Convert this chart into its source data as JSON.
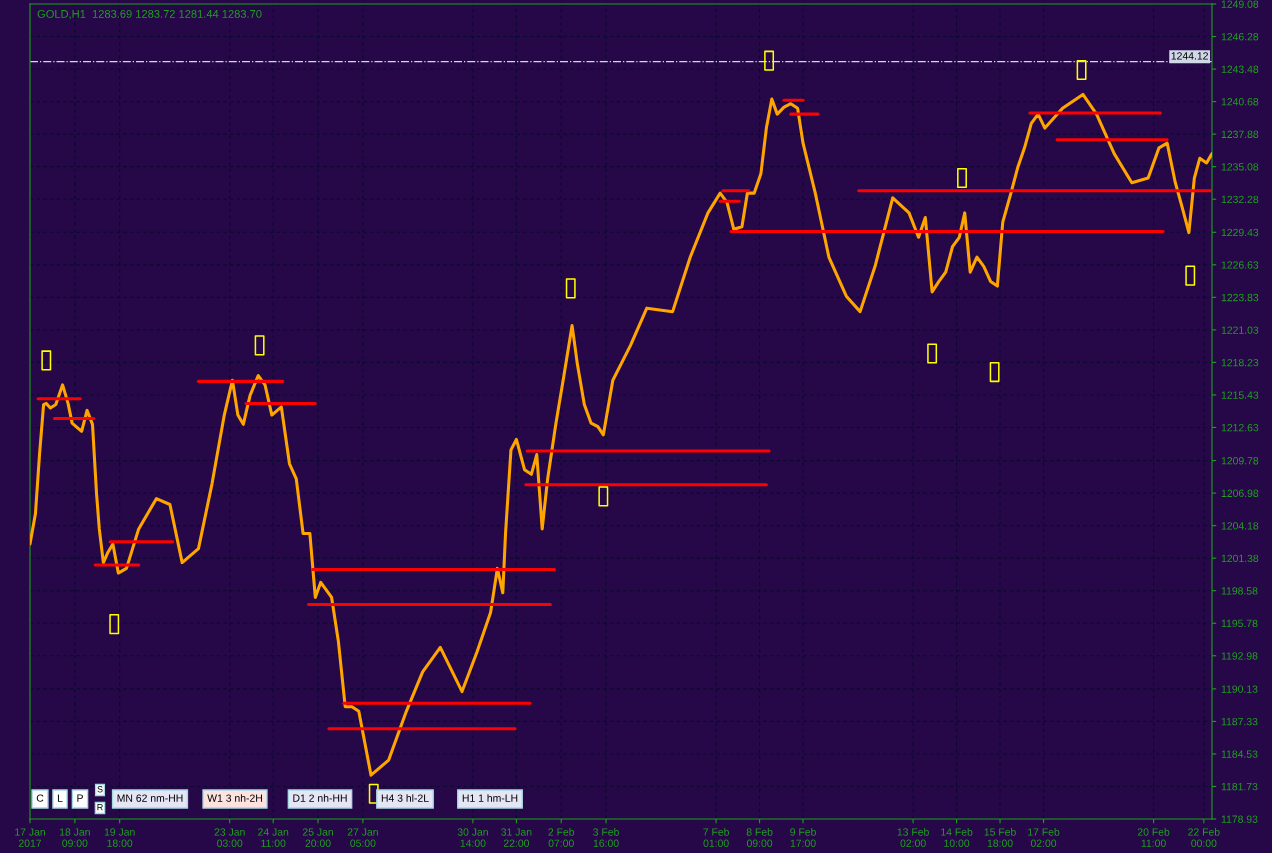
{
  "chart_data": {
    "type": "line",
    "x": [
      "2017-01-17T00:00",
      "2017-01-17T04:00",
      "2017-01-17T07:00",
      "2017-01-17T10:00",
      "2017-01-17T12:00",
      "2017-01-17T15:00",
      "2017-01-17T19:00",
      "2017-01-18T00:00",
      "2017-01-18T04:00",
      "2017-01-18T07:00",
      "2017-01-18T14:00",
      "2017-01-18T18:00",
      "2017-01-18T22:00",
      "2017-01-19T01:00",
      "2017-01-19T03:00",
      "2017-01-19T06:00",
      "2017-01-19T09:00",
      "2017-01-19T13:00",
      "2017-01-19T17:00",
      "2017-01-19T23:00",
      "2017-01-20T08:00",
      "2017-01-20T21:00",
      "2017-01-21T07:00",
      "2017-01-21T16:00",
      "2017-01-22T04:00",
      "2017-01-22T14:00",
      "2017-01-22T23:00",
      "2017-01-23T05:00",
      "2017-01-23T09:00",
      "2017-01-23T13:00",
      "2017-01-23T18:00",
      "2017-01-24T00:00",
      "2017-01-24T05:00",
      "2017-01-24T10:00",
      "2017-01-24T17:00",
      "2017-01-24T23:00",
      "2017-01-25T04:00",
      "2017-01-25T09:00",
      "2017-01-25T14:00",
      "2017-01-25T18:00",
      "2017-01-25T22:00",
      "2017-01-26T06:00",
      "2017-01-26T11:00",
      "2017-01-26T16:00",
      "2017-01-26T21:00",
      "2017-01-27T02:00",
      "2017-01-27T11:00",
      "2017-01-28T00:00",
      "2017-01-28T13:00",
      "2017-01-29T01:00",
      "2017-01-29T14:00",
      "2017-01-30T06:00",
      "2017-01-30T17:00",
      "2017-01-30T22:00",
      "2017-01-31T03:00",
      "2017-01-31T08:00",
      "2017-01-31T12:00",
      "2017-01-31T14:00",
      "2017-01-31T18:00",
      "2017-01-31T22:00",
      "2017-02-01T04:00",
      "2017-02-01T09:00",
      "2017-02-01T13:00",
      "2017-02-01T17:00",
      "2017-02-01T21:00",
      "2017-02-02T03:00",
      "2017-02-02T09:00",
      "2017-02-02T15:00",
      "2017-02-02T19:00",
      "2017-02-03T00:00",
      "2017-02-03T05:00",
      "2017-02-03T10:00",
      "2017-02-03T14:00",
      "2017-02-03T21:00",
      "2017-02-04T10:00",
      "2017-02-04T22:00",
      "2017-02-05T17:00",
      "2017-02-06T06:00",
      "2017-02-06T19:00",
      "2017-02-07T04:00",
      "2017-02-07T09:00",
      "2017-02-07T14:00",
      "2017-02-07T20:00",
      "2017-02-08T00:00",
      "2017-02-08T05:00",
      "2017-02-08T10:00",
      "2017-02-08T14:00",
      "2017-02-08T18:00",
      "2017-02-08T22:00",
      "2017-02-09T03:00",
      "2017-02-09T08:00",
      "2017-02-09T13:00",
      "2017-02-09T17:00",
      "2017-02-10T02:00",
      "2017-02-10T12:00",
      "2017-02-11T01:00",
      "2017-02-11T11:00",
      "2017-02-11T22:00",
      "2017-02-12T11:00",
      "2017-02-12T23:00",
      "2017-02-13T06:00",
      "2017-02-13T11:00",
      "2017-02-13T16:00",
      "2017-02-13T21:00",
      "2017-02-14T02:00",
      "2017-02-14T07:00",
      "2017-02-14T12:00",
      "2017-02-14T16:00",
      "2017-02-14T20:00",
      "2017-02-15T01:00",
      "2017-02-15T06:00",
      "2017-02-15T11:00",
      "2017-02-15T16:00",
      "2017-02-15T20:00",
      "2017-02-16T02:00",
      "2017-02-16T07:00",
      "2017-02-16T12:00",
      "2017-02-16T17:00",
      "2017-02-16T22:00",
      "2017-02-17T03:00",
      "2017-02-17T16:00",
      "2017-02-18T07:00",
      "2017-02-18T17:00",
      "2017-02-19T06:00",
      "2017-02-19T19:00",
      "2017-02-20T07:00",
      "2017-02-20T15:00",
      "2017-02-20T21:00",
      "2017-02-21T03:00",
      "2017-02-21T08:00",
      "2017-02-21T13:00",
      "2017-02-21T17:00",
      "2017-02-21T21:00",
      "2017-02-22T02:00",
      "2017-02-22T06:00"
    ],
    "series": [
      {
        "color": "#ffa500",
        "values": [
          1202.6,
          1205.2,
          1210.3,
          1214.6,
          1214.7,
          1214.3,
          1214.6,
          1216.3,
          1214.7,
          1213.0,
          1212.3,
          1214.1,
          1212.9,
          1206.9,
          1203.9,
          1201.0,
          1201.8,
          1202.6,
          1200.1,
          1200.5,
          1203.9,
          1206.5,
          1206.0,
          1201.0,
          1202.2,
          1207.8,
          1213.7,
          1216.7,
          1213.7,
          1212.9,
          1215.4,
          1217.1,
          1216.3,
          1213.7,
          1214.4,
          1209.5,
          1208.2,
          1203.5,
          1203.5,
          1198.0,
          1199.3,
          1198.0,
          1194.2,
          1188.6,
          1188.6,
          1188.2,
          1182.7,
          1184.0,
          1188.2,
          1191.6,
          1193.7,
          1189.9,
          1193.3,
          1195.0,
          1196.7,
          1200.5,
          1198.4,
          1203.5,
          1210.7,
          1211.6,
          1209.0,
          1208.6,
          1210.3,
          1203.9,
          1208.2,
          1212.9,
          1217.1,
          1221.4,
          1218.0,
          1214.6,
          1213.0,
          1212.7,
          1212.0,
          1216.7,
          1219.7,
          1222.9,
          1222.6,
          1227.3,
          1231.1,
          1232.8,
          1232.0,
          1229.7,
          1229.9,
          1232.8,
          1232.8,
          1234.5,
          1238.4,
          1240.9,
          1239.6,
          1240.2,
          1240.5,
          1240.1,
          1237.1,
          1232.8,
          1227.3,
          1223.9,
          1222.6,
          1226.5,
          1232.4,
          1231.1,
          1229.0,
          1230.7,
          1224.3,
          1225.2,
          1226.0,
          1228.2,
          1229.0,
          1231.1,
          1226.0,
          1227.3,
          1226.5,
          1225.2,
          1224.8,
          1230.3,
          1232.8,
          1235.0,
          1236.7,
          1238.8,
          1239.6,
          1238.4,
          1240.1,
          1241.3,
          1239.6,
          1236.2,
          1233.7,
          1234.1,
          1236.7,
          1237.1,
          1233.7,
          1231.6,
          1229.4,
          1234.1,
          1235.8,
          1235.4,
          1236.2
        ]
      },
      {
        "color": "#ff0000",
        "x": [
          "2017-01-17T06:00",
          "2017-01-18T13:00"
        ],
        "values": [
          1215.1,
          1215.1
        ]
      },
      {
        "color": "#ff0000",
        "x": [
          "2017-01-17T18:00",
          "2017-01-18T23:00"
        ],
        "values": [
          1213.4,
          1213.4
        ]
      },
      {
        "color": "#ff0000",
        "x": [
          "2017-01-19T11:00",
          "2017-01-21T09:00"
        ],
        "values": [
          1202.8,
          1202.8
        ]
      },
      {
        "color": "#ff0000",
        "x": [
          "2017-01-19T00:00",
          "2017-01-20T08:00"
        ],
        "values": [
          1200.8,
          1200.8
        ]
      },
      {
        "color": "#ff0000",
        "x": [
          "2017-01-22T04:00",
          "2017-01-24T18:00"
        ],
        "values": [
          1216.6,
          1216.6
        ]
      },
      {
        "color": "#ff0000",
        "x": [
          "2017-01-23T15:00",
          "2017-01-25T18:00"
        ],
        "values": [
          1214.7,
          1214.7
        ]
      },
      {
        "color": "#ff0000",
        "x": [
          "2017-01-25T16:00",
          "2017-02-02T02:00"
        ],
        "values": [
          1200.4,
          1200.4
        ]
      },
      {
        "color": "#ff0000",
        "x": [
          "2017-01-25T13:00",
          "2017-02-01T23:00"
        ],
        "values": [
          1197.4,
          1197.4
        ]
      },
      {
        "color": "#ff0000",
        "x": [
          "2017-01-26T15:00",
          "2017-02-01T08:00"
        ],
        "values": [
          1188.9,
          1188.9
        ]
      },
      {
        "color": "#ff0000",
        "x": [
          "2017-01-26T04:00",
          "2017-01-31T21:00"
        ],
        "values": [
          1186.7,
          1186.7
        ]
      },
      {
        "color": "#ff0000",
        "x": [
          "2017-02-01T06:00",
          "2017-02-08T16:00"
        ],
        "values": [
          1210.6,
          1210.6
        ]
      },
      {
        "color": "#ff0000",
        "x": [
          "2017-02-01T05:00",
          "2017-02-08T14:00"
        ],
        "values": [
          1207.7,
          1207.7
        ]
      },
      {
        "color": "#ff0000",
        "x": [
          "2017-02-07T06:00",
          "2017-02-08T01:00"
        ],
        "values": [
          1233.0,
          1233.0
        ]
      },
      {
        "color": "#ff0000",
        "x": [
          "2017-02-07T04:00",
          "2017-02-07T18:00"
        ],
        "values": [
          1232.1,
          1232.1
        ]
      },
      {
        "color": "#ff0000",
        "x": [
          "2017-02-07T12:00",
          "2017-02-20T18:00"
        ],
        "values": [
          1229.5,
          1229.5
        ]
      },
      {
        "color": "#ff0000",
        "x": [
          "2017-02-09T03:00",
          "2017-02-09T17:00"
        ],
        "values": [
          1240.8,
          1240.8
        ]
      },
      {
        "color": "#ff0000",
        "x": [
          "2017-02-09T08:00",
          "2017-02-10T04:00"
        ],
        "values": [
          1239.6,
          1239.6
        ]
      },
      {
        "color": "#ff0000",
        "x": [
          "2017-02-11T10:00",
          "2017-02-22T06:00"
        ],
        "values": [
          1233.0,
          1233.0
        ]
      },
      {
        "color": "#ff0000",
        "x": [
          "2017-02-16T16:00",
          "2017-02-20T16:00"
        ],
        "values": [
          1239.7,
          1239.7
        ]
      },
      {
        "color": "#ff0000",
        "x": [
          "2017-02-17T12:00",
          "2017-02-20T21:00"
        ],
        "values": [
          1237.4,
          1237.4
        ]
      },
      {
        "type": "scatter",
        "color": "#ffff00",
        "marker": "square",
        "x": [
          "2017-01-17T12:00",
          "2017-01-19T14:00",
          "2017-01-24T01:00",
          "2017-01-27T13:00",
          "2017-02-02T14:00",
          "2017-02-03T14:00",
          "2017-02-08T16:00",
          "2017-02-14T14:00",
          "2017-02-13T16:00",
          "2017-02-15T14:00",
          "2017-02-18T06:00",
          "2017-02-21T14:00"
        ],
        "values": [
          1218.4,
          1195.7,
          1219.7,
          1181.1,
          1224.6,
          1206.7,
          1244.2,
          1234.1,
          1219.0,
          1217.4,
          1243.4,
          1225.7
        ]
      }
    ],
    "xlim": [
      "2017-01-17T00:00",
      "2017-02-22T06:00"
    ],
    "xticks": [
      {
        "value": "2017-01-17T00:00",
        "label": "17 Jan 2017"
      },
      {
        "value": "2017-01-18T09:00",
        "label": "18 Jan 09:00"
      },
      {
        "value": "2017-01-19T18:00",
        "label": "19 Jan 18:00"
      },
      {
        "value": "2017-01-23T03:00",
        "label": "23 Jan 03:00"
      },
      {
        "value": "2017-01-24T11:00",
        "label": "24 Jan 11:00"
      },
      {
        "value": "2017-01-25T20:00",
        "label": "25 Jan 20:00"
      },
      {
        "value": "2017-01-27T05:00",
        "label": "27 Jan 05:00"
      },
      {
        "value": "2017-01-30T14:00",
        "label": "30 Jan 14:00"
      },
      {
        "value": "2017-01-31T22:00",
        "label": "31 Jan 22:00"
      },
      {
        "value": "2017-02-02T07:00",
        "label": "2 Feb 07:00"
      },
      {
        "value": "2017-02-03T16:00",
        "label": "3 Feb 16:00"
      },
      {
        "value": "2017-02-07T01:00",
        "label": "7 Feb 01:00"
      },
      {
        "value": "2017-02-08T09:00",
        "label": "8 Feb 09:00"
      },
      {
        "value": "2017-02-09T17:00",
        "label": "9 Feb 17:00"
      },
      {
        "value": "2017-02-13T02:00",
        "label": "13 Feb 02:00"
      },
      {
        "value": "2017-02-14T10:00",
        "label": "14 Feb 10:00"
      },
      {
        "value": "2017-02-15T18:00",
        "label": "15 Feb 18:00"
      },
      {
        "value": "2017-02-17T02:00",
        "label": "17 Feb 02:00"
      },
      {
        "value": "2017-02-20T11:00",
        "label": "20 Feb 11:00"
      },
      {
        "value": "2017-02-22T00:00",
        "label": "22 Feb 00:00"
      }
    ],
    "ylim": [
      1178.93,
      1249.08
    ],
    "yticks": [
      1178.93,
      1181.73,
      1184.53,
      1187.33,
      1190.13,
      1192.98,
      1195.78,
      1198.58,
      1201.38,
      1204.18,
      1206.98,
      1209.78,
      1212.63,
      1215.43,
      1218.23,
      1221.03,
      1223.83,
      1226.63,
      1229.43,
      1232.28,
      1235.08,
      1237.88,
      1240.68,
      1243.48,
      1246.28,
      1249.08
    ],
    "ref_lines": [
      {
        "axis": "y",
        "value": 1244.12,
        "label": "1244.12",
        "color": "#d0d8e8",
        "line_style": "dashdot"
      }
    ],
    "grid": true,
    "annotations": [
      "GOLD,H1  1283.69 1283.72 1281.44 1283.70",
      "C",
      "L",
      "P",
      "S",
      "R",
      "MN 62 nm-HH",
      "W1 3 nh-2H",
      "D1 2 nh-HH",
      "H4 3 hl-2L",
      "H1 1 hm-LH"
    ]
  }
}
